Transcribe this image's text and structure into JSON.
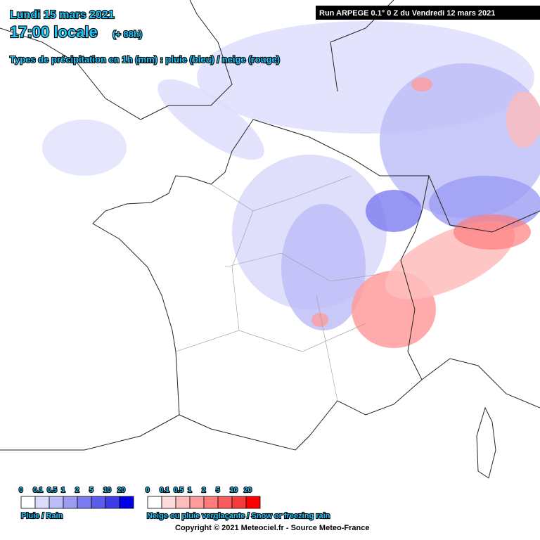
{
  "header": {
    "date": "Lundi 15 mars 2021",
    "time": "17:00 locale",
    "lead": "(+ 88h)",
    "subtitle": "Types de précipitation en 1h (mm) : pluie (bleu) / neige (rouge)",
    "run": "Run ARPEGE 0.1° 0 Z du Vendredi 12 mars 2021"
  },
  "rain_legend": {
    "labels": [
      "0",
      "0.1",
      "0.5",
      "1",
      "2",
      "5",
      "10",
      "20"
    ],
    "colors": [
      "#ffffff",
      "#dcdcfc",
      "#bcbcf8",
      "#9c9cf4",
      "#7c7cf0",
      "#5c5cec",
      "#3c3ce8",
      "#0000e8"
    ],
    "title": "Pluie / Rain"
  },
  "snow_legend": {
    "labels": [
      "0",
      "0.1",
      "0.5",
      "1",
      "2",
      "5",
      "10",
      "20"
    ],
    "colors": [
      "#ffffff",
      "#ffdcdc",
      "#ffbcbc",
      "#ff9c9c",
      "#ff7c7c",
      "#f85c5c",
      "#f43c3c",
      "#ff0000"
    ],
    "title": "Neige ou pluie verglaçante / Snow or freezing rain"
  },
  "footer": {
    "copyright": "Copyright © 2021 Meteociel.fr - Source Meteo-France"
  }
}
